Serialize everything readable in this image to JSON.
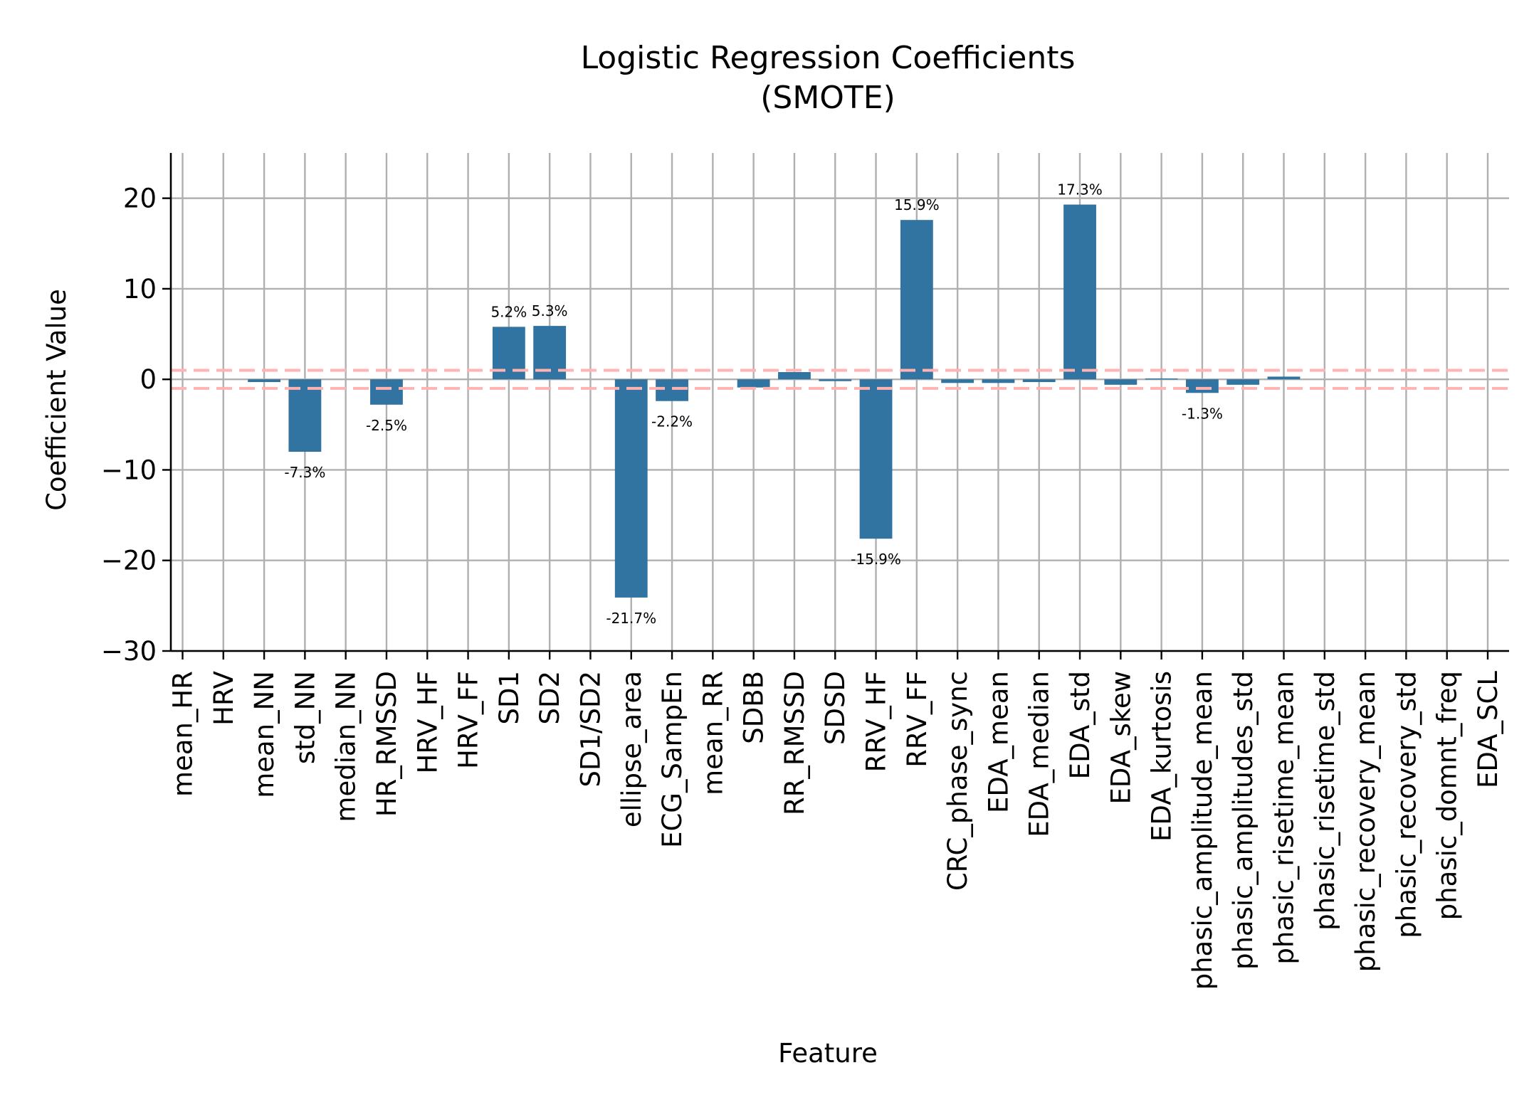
{
  "chart_data": {
    "type": "bar",
    "title": "Logistic Regression Coefficients",
    "subtitle": "(SMOTE)",
    "xlabel": "Feature",
    "ylabel": "Coefficient Value",
    "ylim": [
      -30,
      25
    ],
    "yticks": [
      20,
      10,
      0,
      -10,
      -20,
      -30
    ],
    "ytick_labels": [
      "20",
      "10",
      "0",
      "−10",
      "−20",
      "−30"
    ],
    "grid": true,
    "bar_color": "#3274a1",
    "threshold_color": "#ffb3b3",
    "thresholds": [
      1,
      -1
    ],
    "categories": [
      "mean_HR",
      "HRV",
      "mean_NN",
      "std_NN",
      "median_NN",
      "HR_RMSSD",
      "HRV_HF",
      "HRV_FF",
      "SD1",
      "SD2",
      "SD1/SD2",
      "ellipse_area",
      "ECG_SampEn",
      "mean_RR",
      "SDBB",
      "RR_RMSSD",
      "SDSD",
      "RRV_HF",
      "RRV_FF",
      "CRC_phase_sync",
      "EDA_mean",
      "EDA_median",
      "EDA_std",
      "EDA_skew",
      "EDA_kurtosis",
      "phasic_amplitude_mean",
      "phasic_amplitudes_std",
      "phasic_risetime_mean",
      "phasic_risetime_std",
      "phasic_recovery_mean",
      "phasic_recovery_std",
      "phasic_domnt_freq",
      "EDA_SCL"
    ],
    "values": [
      0,
      0,
      -0.3,
      -8.0,
      0,
      -2.8,
      0,
      0,
      5.8,
      5.9,
      0,
      -24.1,
      -2.4,
      0,
      -0.9,
      0.8,
      -0.2,
      -17.6,
      17.6,
      -0.4,
      -0.4,
      -0.3,
      19.3,
      -0.6,
      0.1,
      -1.5,
      -0.6,
      0.3,
      0,
      0,
      0,
      0,
      0
    ],
    "annotations": [
      {
        "category": "std_NN",
        "text": "-7.3%"
      },
      {
        "category": "HR_RMSSD",
        "text": "-2.5%"
      },
      {
        "category": "SD1",
        "text": "5.2%"
      },
      {
        "category": "SD2",
        "text": "5.3%"
      },
      {
        "category": "ellipse_area",
        "text": "-21.7%"
      },
      {
        "category": "ECG_SampEn",
        "text": "-2.2%"
      },
      {
        "category": "RRV_HF",
        "text": "-15.9%"
      },
      {
        "category": "RRV_FF",
        "text": "15.9%"
      },
      {
        "category": "EDA_std",
        "text": "17.3%"
      },
      {
        "category": "phasic_amplitude_mean",
        "text": "-1.3%"
      }
    ]
  }
}
